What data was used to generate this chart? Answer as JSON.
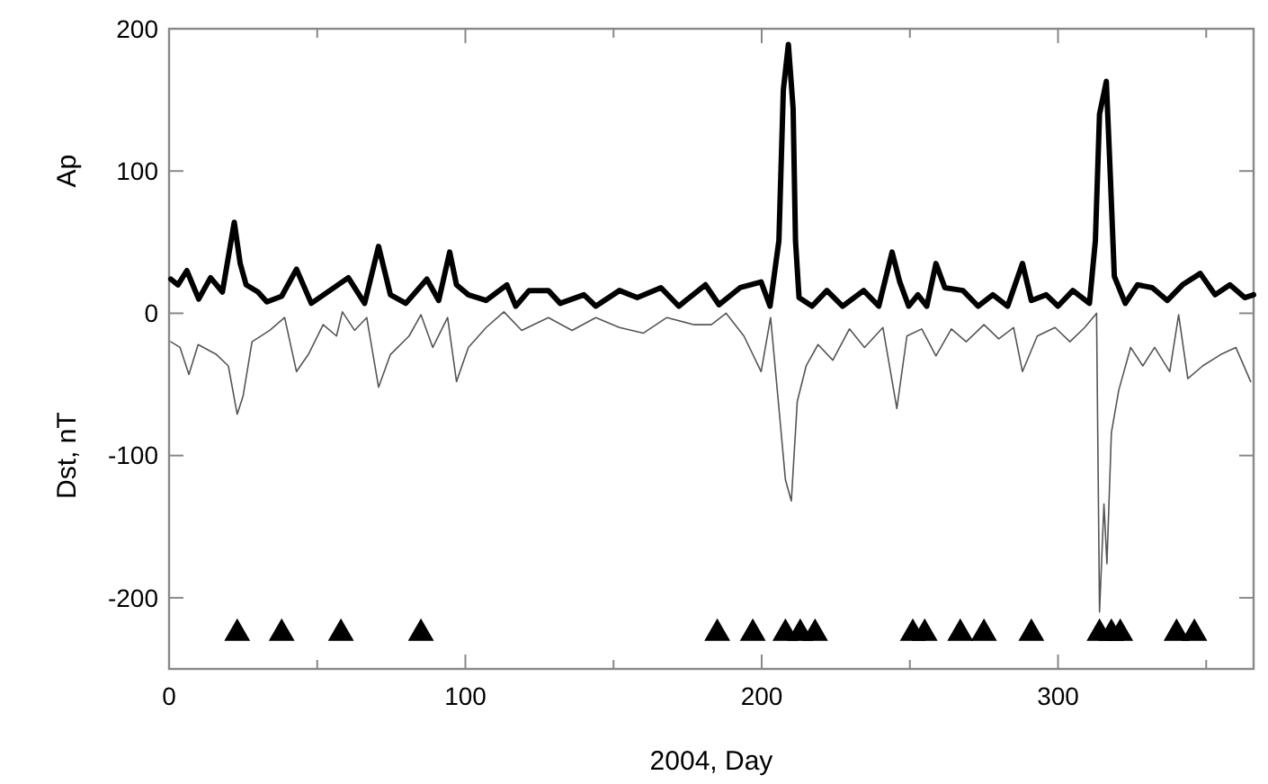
{
  "chart_data": {
    "type": "line",
    "xlabel": "2004, Day",
    "xlim": [
      0,
      366
    ],
    "ylim": [
      -250,
      200
    ],
    "xticks": [
      0,
      {
        "value": 50,
        "label": null
      },
      100,
      {
        "value": 150,
        "label": null
      },
      200,
      {
        "value": 250,
        "label": null
      },
      300,
      {
        "value": 350,
        "label": null
      }
    ],
    "yticks": [
      -200,
      -100,
      0,
      100,
      200
    ],
    "grid": false,
    "ylabel": "Ap",
    "annotations": [
      "Dst, nT"
    ],
    "series": [
      {
        "color": "#000000",
        "x": [
          0.6,
          3,
          6,
          10,
          14,
          18,
          22,
          24,
          26,
          30,
          33,
          38,
          43,
          48,
          60.5,
          66,
          70.7,
          74.7,
          79.9,
          87,
          91,
          94.7,
          97,
          101,
          107,
          114,
          117,
          121.5,
          128,
          132,
          140,
          144,
          152,
          158,
          166,
          172,
          181,
          185.6,
          192.7,
          199.8,
          202.8,
          205.8,
          207.3,
          209,
          210.6,
          211.4,
          212.6,
          217,
          222,
          227.3,
          234.4,
          239.5,
          244,
          246.6,
          249.6,
          252.7,
          255.7,
          258.8,
          261.8,
          267.9,
          273,
          278,
          283,
          288,
          291,
          296,
          300,
          305,
          310.6,
          312.6,
          314,
          316.3,
          317.7,
          319,
          322.7,
          326.8,
          331.8,
          336.9,
          342,
          348,
          353,
          358,
          363,
          366
        ],
        "values": [
          24,
          20,
          30,
          10,
          25,
          15,
          64,
          35,
          20,
          15,
          8,
          12,
          31,
          7,
          25,
          7,
          47,
          13,
          7,
          24,
          9,
          43,
          20,
          13,
          9,
          20,
          5,
          16,
          16,
          7,
          13,
          5,
          16,
          11,
          18,
          5,
          20,
          6,
          18,
          22,
          5,
          51,
          157,
          189,
          144,
          51,
          11,
          5,
          16,
          5,
          16,
          5,
          43,
          22,
          5,
          13,
          5,
          35,
          18,
          16,
          5,
          13,
          5,
          35,
          9,
          13,
          5,
          16,
          7,
          51,
          140,
          163,
          94,
          26,
          7,
          20,
          18,
          9,
          20,
          28,
          13,
          20,
          11,
          13
        ]
      },
      {
        "color": "#555555",
        "x": [
          0.6,
          3.7,
          6.7,
          9.8,
          16,
          20,
          23,
          25,
          28,
          34,
          39,
          43,
          47,
          52,
          56.5,
          58.5,
          62.6,
          66.7,
          70.7,
          74.7,
          81,
          85,
          89,
          94,
          97,
          101,
          107,
          113,
          119,
          128,
          136,
          144,
          152,
          160,
          168,
          177,
          183,
          188,
          194,
          199.8,
          203,
          206,
          208,
          210,
          212,
          215,
          219,
          224,
          229.6,
          234.7,
          240.9,
          245.6,
          249,
          254,
          258.8,
          264,
          269,
          275,
          280,
          285,
          288,
          293,
          299,
          304,
          309,
          313,
          314,
          315.5,
          316.5,
          318,
          320.5,
          324.5,
          328.6,
          332.6,
          337.7,
          340.7,
          343.8,
          348.8,
          354.9,
          360,
          365
        ],
        "values": [
          -20,
          -24,
          -43,
          -22,
          -29,
          -37,
          -71,
          -58,
          -20,
          -12,
          -3,
          -41,
          -29,
          -8,
          -16,
          1,
          -12,
          -3,
          -52,
          -29,
          -16,
          -1,
          -24,
          -3,
          -48,
          -24,
          -10,
          1,
          -12,
          -3,
          -12,
          -3,
          -10,
          -14,
          -3,
          -8,
          -8,
          0,
          -16,
          -41,
          -3,
          -71,
          -117,
          -132,
          -62,
          -37,
          -22,
          -33,
          -11,
          -24,
          -10,
          -67,
          -16,
          -11,
          -30,
          -11,
          -20,
          -8,
          -18,
          -10,
          -41,
          -16,
          -10,
          -20,
          -10,
          0,
          -210,
          -134,
          -176,
          -84,
          -54,
          -24,
          -37,
          -24,
          -41,
          -1,
          -46,
          -37,
          -29,
          -24,
          -48
        ]
      },
      {
        "type": "scatter",
        "marker": "triangle",
        "color": "#000000",
        "x": [
          23,
          38,
          58,
          85,
          185,
          197,
          208,
          213,
          218,
          251,
          255,
          267,
          275,
          291,
          314,
          318,
          321,
          340,
          346
        ],
        "values": [
          -225,
          -225,
          -225,
          -225,
          -225,
          -225,
          -225,
          -225,
          -225,
          -225,
          -225,
          -225,
          -225,
          -225,
          -225,
          -225,
          -225,
          -225,
          -225
        ]
      }
    ]
  }
}
